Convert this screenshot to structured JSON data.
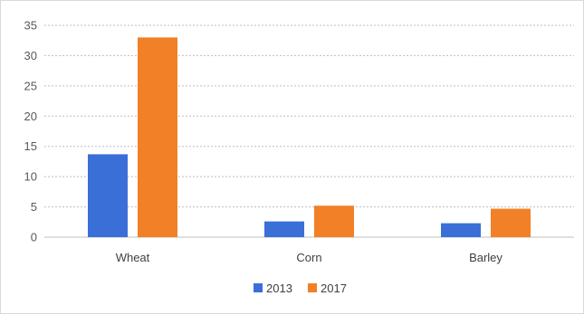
{
  "chart_data": {
    "type": "bar",
    "categories": [
      "Wheat",
      "Corn",
      "Barley"
    ],
    "series": [
      {
        "name": "2013",
        "values": [
          13.7,
          2.6,
          2.3
        ],
        "color": "#3A6FD8"
      },
      {
        "name": "2017",
        "values": [
          33.0,
          5.2,
          4.7
        ],
        "color": "#F28026"
      }
    ],
    "ylim": [
      0,
      35
    ],
    "yticks": [
      0,
      5,
      10,
      15,
      20,
      25,
      30,
      35
    ],
    "grid": true,
    "legend": "bottom-center",
    "gridline_color": "#bfbfbf"
  }
}
